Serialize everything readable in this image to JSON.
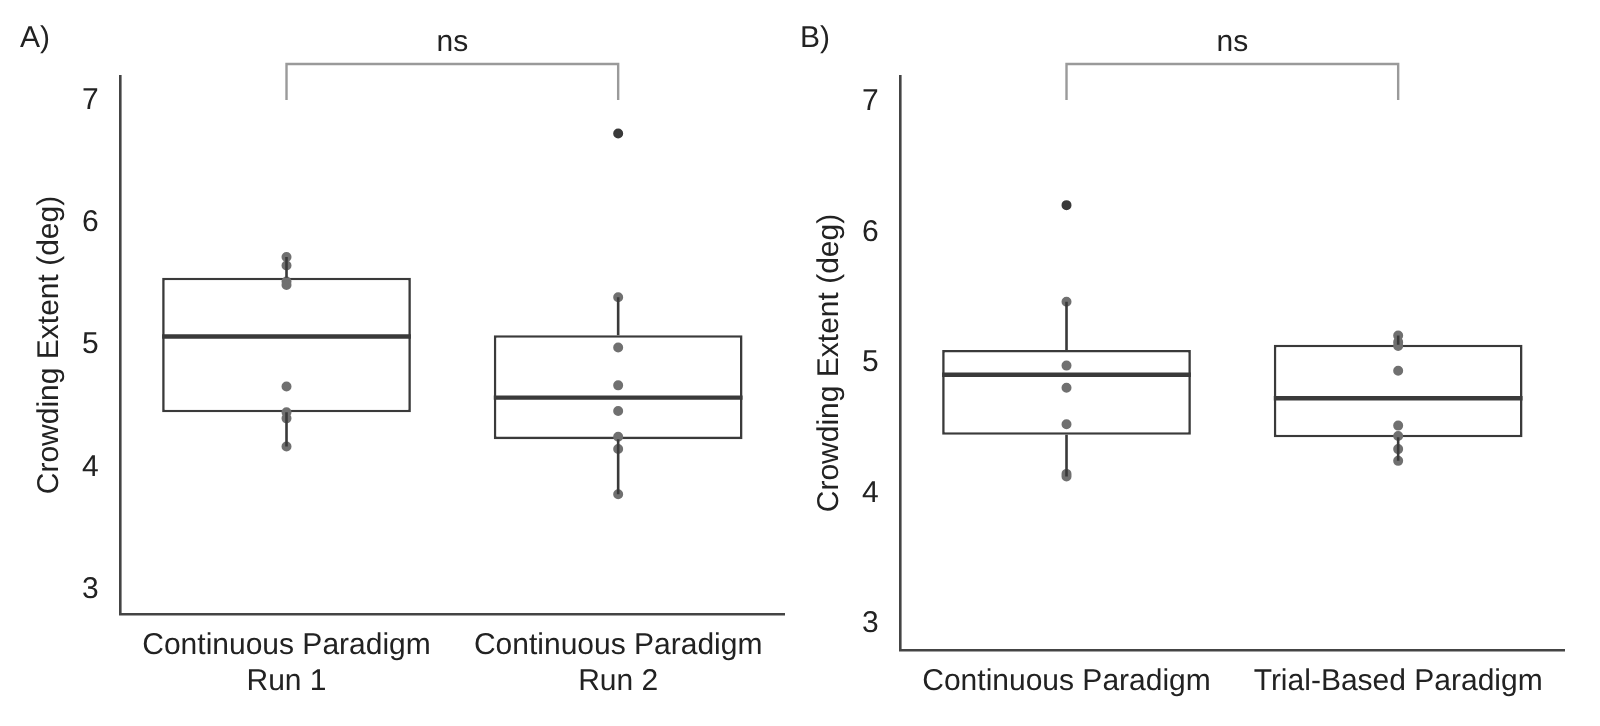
{
  "chart_data": [
    {
      "type": "box",
      "categories": [
        "Continuous Paradigm\nRun 1",
        "Continuous Paradigm\nRun 2"
      ],
      "ylabel": "Crowding Extent (deg)",
      "ylim": [
        2.8,
        7.2
      ],
      "yticks": [
        3,
        4,
        5,
        6,
        7
      ],
      "grid": false,
      "legend": false,
      "annotations": [
        "A)",
        "ns"
      ],
      "series": [
        {
          "type": "box",
          "color": "#3a3a3a",
          "boxes": [
            {
              "low": 4.17,
              "q1": 4.45,
              "median": 5.07,
              "q3": 5.55,
              "high": 5.72
            },
            {
              "low": 3.78,
              "q1": 4.23,
              "median": 4.57,
              "q3": 5.08,
              "high": 5.39,
              "outliers": [
                6.73
              ]
            }
          ]
        },
        {
          "type": "scatter",
          "color": "#707070",
          "x": [
            "Continuous Paradigm\nRun 1",
            "Continuous Paradigm\nRun 1",
            "Continuous Paradigm\nRun 1",
            "Continuous Paradigm\nRun 1",
            "Continuous Paradigm\nRun 1",
            "Continuous Paradigm\nRun 1",
            "Continuous Paradigm\nRun 1",
            "Continuous Paradigm\nRun 1",
            "Continuous Paradigm\nRun 2",
            "Continuous Paradigm\nRun 2",
            "Continuous Paradigm\nRun 2",
            "Continuous Paradigm\nRun 2",
            "Continuous Paradigm\nRun 2",
            "Continuous Paradigm\nRun 2",
            "Continuous Paradigm\nRun 2"
          ],
          "values": [
            5.72,
            5.65,
            5.52,
            5.49,
            4.66,
            4.45,
            4.4,
            4.17,
            5.39,
            4.98,
            4.67,
            4.46,
            4.25,
            4.15,
            3.78
          ]
        }
      ]
    },
    {
      "type": "box",
      "categories": [
        "Continuous Paradigm",
        "Trial-Based Paradigm"
      ],
      "ylabel": "Crowding Extent (deg)",
      "ylim": [
        2.8,
        7.2
      ],
      "yticks": [
        3,
        4,
        5,
        6,
        7
      ],
      "grid": false,
      "legend": false,
      "annotations": [
        "B)",
        "ns"
      ],
      "series": [
        {
          "type": "box",
          "color": "#3a3a3a",
          "boxes": [
            {
              "low": 4.13,
              "q1": 4.45,
              "median": 4.91,
              "q3": 5.1,
              "high": 5.47,
              "outliers": [
                6.21
              ]
            },
            {
              "low": 4.25,
              "q1": 4.43,
              "median": 4.73,
              "q3": 5.14,
              "high": 5.21
            }
          ]
        },
        {
          "type": "scatter",
          "color": "#707070",
          "x": [
            "Continuous Paradigm",
            "Continuous Paradigm",
            "Continuous Paradigm",
            "Continuous Paradigm",
            "Continuous Paradigm",
            "Continuous Paradigm",
            "Trial-Based Paradigm",
            "Trial-Based Paradigm",
            "Trial-Based Paradigm",
            "Trial-Based Paradigm",
            "Trial-Based Paradigm",
            "Trial-Based Paradigm",
            "Trial-Based Paradigm",
            "Trial-Based Paradigm"
          ],
          "values": [
            5.47,
            4.98,
            4.81,
            4.53,
            4.15,
            4.13,
            5.21,
            5.16,
            5.13,
            4.94,
            4.52,
            4.44,
            4.34,
            4.25
          ]
        }
      ]
    }
  ]
}
